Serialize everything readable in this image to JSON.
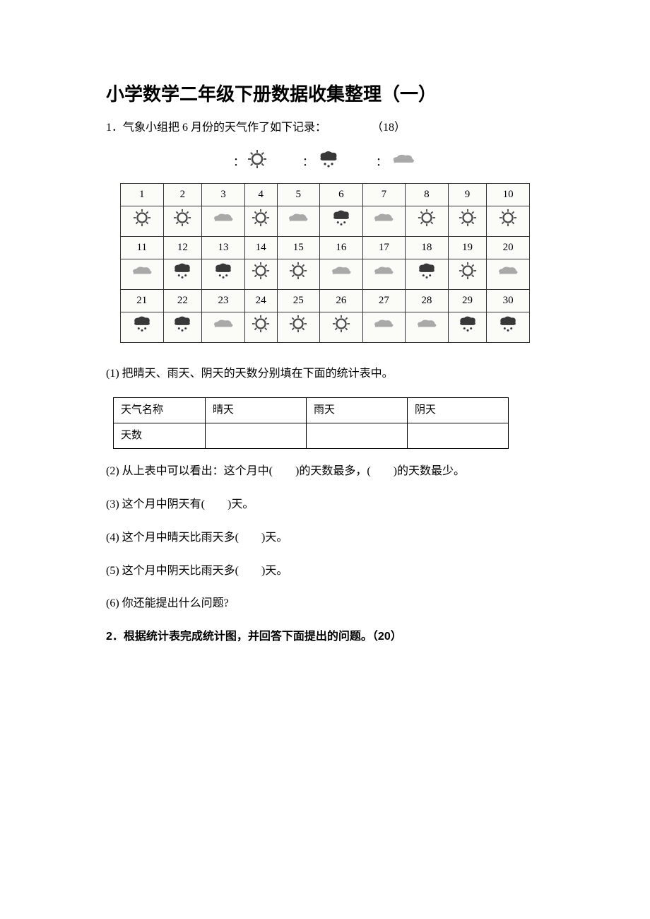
{
  "title": "小学数学二年级下册数据收集整理（一）",
  "q1": {
    "number": "1．",
    "text": "气象小组把 6 月份的天气作了如下记录：",
    "points": "（18）",
    "legend": {
      "sunny": {
        "label": "",
        "icon": "sunny",
        "colon": "："
      },
      "rainy": {
        "label": "",
        "icon": "rainy",
        "colon": "："
      },
      "cloudy": {
        "label": "",
        "icon": "cloudy",
        "colon": "："
      }
    },
    "calendar": {
      "days": [
        "1",
        "2",
        "3",
        "4",
        "5",
        "6",
        "7",
        "8",
        "9",
        "10",
        "11",
        "12",
        "13",
        "14",
        "15",
        "16",
        "17",
        "18",
        "19",
        "20",
        "21",
        "22",
        "23",
        "24",
        "25",
        "26",
        "27",
        "28",
        "29",
        "30"
      ],
      "weather": [
        "sunny",
        "sunny",
        "cloudy",
        "sunny",
        "cloudy",
        "rainy",
        "cloudy",
        "sunny",
        "sunny",
        "sunny",
        "cloudy",
        "rainy",
        "rainy",
        "sunny",
        "sunny",
        "cloudy",
        "cloudy",
        "rainy",
        "sunny",
        "cloudy",
        "rainy",
        "rainy",
        "cloudy",
        "sunny",
        "sunny",
        "sunny",
        "cloudy",
        "cloudy",
        "rainy",
        "rainy"
      ],
      "border_color": "#333333",
      "background_color": "#fbfbf8",
      "text_color": "#2a2a2a"
    },
    "sub_q1": {
      "label": "(1) 把晴天、雨天、阴天的天数分别填在下面的统计表中。",
      "table": {
        "row1": [
          "天气名称",
          "晴天",
          "雨天",
          "阴天"
        ],
        "row2": [
          "天数",
          "",
          "",
          ""
        ]
      }
    },
    "sub_q2": "(2) 从上表中可以看出：这个月中(　　)的天数最多，(　　)的天数最少。",
    "sub_q3": "(3) 这个月中阴天有(　　)天。",
    "sub_q4": "(4) 这个月中晴天比雨天多(　　)天。",
    "sub_q5": "(5) 这个月中阴天比雨天多(　　)天。",
    "sub_q6": "(6) 你还能提出什么问题?"
  },
  "q2": {
    "number": "2．",
    "text": "根据统计表完成统计图，并回答下面提出的问题。",
    "points": "（20）"
  },
  "icons": {
    "sunny_color": "#4a4a4a",
    "sunny_fill": "#ffffff",
    "rainy_cloud": "#383838",
    "rainy_drops": "#383838",
    "cloudy_fill": "#9a9a9a",
    "cloudy_texture": "#7a7a7a"
  }
}
